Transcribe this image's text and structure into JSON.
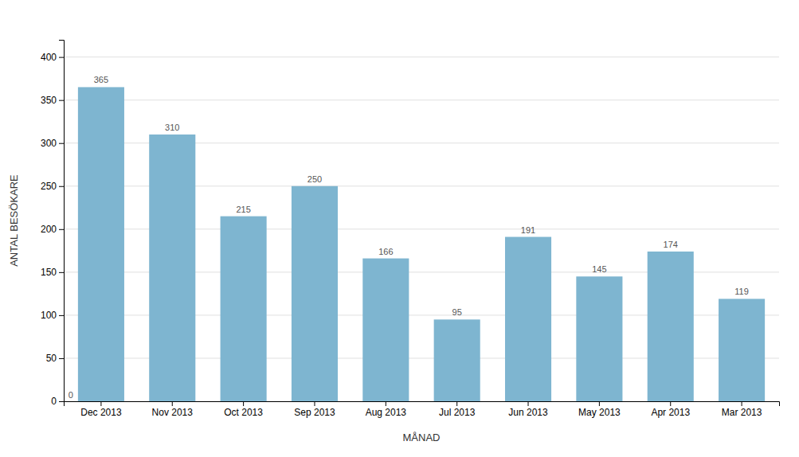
{
  "chart_data": {
    "type": "bar",
    "categories": [
      "Dec 2013",
      "Nov 2013",
      "Oct 2013",
      "Sep 2013",
      "Aug 2013",
      "Jul 2013",
      "Jun 2013",
      "May 2013",
      "Apr 2013",
      "Mar 2013"
    ],
    "values": [
      365,
      310,
      215,
      250,
      166,
      95,
      191,
      145,
      174,
      119
    ],
    "color": "#7eb5d0",
    "x_label": "MÅNAD",
    "y_label": "ANTAL BESÖKARE",
    "ylim": [
      0,
      420
    ],
    "yticks": [
      0,
      50,
      100,
      150,
      200,
      250,
      300,
      350,
      400
    ],
    "grid": true,
    "data_labels": true,
    "annotations": [
      "0"
    ]
  }
}
